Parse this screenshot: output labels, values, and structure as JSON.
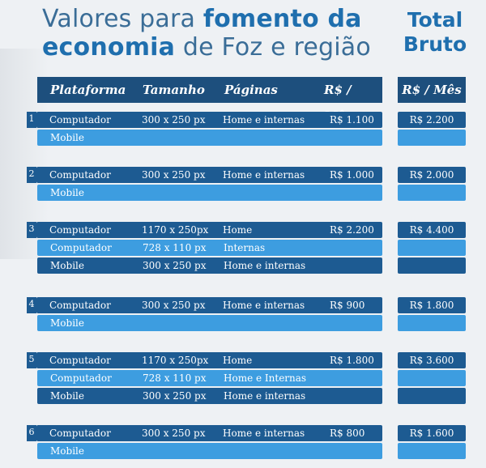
{
  "heading": {
    "line1_normal": "Valores para ",
    "line1_bold": "fomento da",
    "line2_bold": "economia",
    "line2_normal": " de Foz e região"
  },
  "total": {
    "line1": "Total",
    "line2": "Bruto"
  },
  "header": {
    "plataforma": "Plataforma",
    "tamanho": "Tamanho",
    "paginas": "Páginas",
    "valor": "R$ / Mês",
    "total": "R$ / Mês"
  },
  "groups": [
    {
      "num": "1",
      "total": "R$ 2.200",
      "rows": [
        {
          "plataforma": "Computador",
          "tamanho": "300 x 250 px",
          "paginas": "Home e internas",
          "valor": "R$ 1.100"
        },
        {
          "plataforma": "Mobile",
          "tamanho": "",
          "paginas": "",
          "valor": ""
        }
      ]
    },
    {
      "num": "2",
      "total": "R$ 2.000",
      "rows": [
        {
          "plataforma": "Computador",
          "tamanho": "300 x 250 px",
          "paginas": "Home e internas",
          "valor": "R$ 1.000"
        },
        {
          "plataforma": "Mobile",
          "tamanho": "",
          "paginas": "",
          "valor": ""
        }
      ]
    },
    {
      "num": "3",
      "total": "R$ 4.400",
      "rows": [
        {
          "plataforma": "Computador",
          "tamanho": "1170 x 250px",
          "paginas": "Home",
          "valor": "R$ 2.200"
        },
        {
          "plataforma": "Computador",
          "tamanho": "728 x 110 px",
          "paginas": "Internas",
          "valor": ""
        },
        {
          "plataforma": "Mobile",
          "tamanho": "300 x 250 px",
          "paginas": "Home e internas",
          "valor": ""
        }
      ]
    },
    {
      "num": "4",
      "total": "R$ 1.800",
      "rows": [
        {
          "plataforma": "Computador",
          "tamanho": "300 x 250 px",
          "paginas": "Home e internas",
          "valor": "R$ 900"
        },
        {
          "plataforma": "Mobile",
          "tamanho": "",
          "paginas": "",
          "valor": ""
        }
      ]
    },
    {
      "num": "5",
      "total": "R$ 3.600",
      "rows": [
        {
          "plataforma": "Computador",
          "tamanho": "1170 x 250px",
          "paginas": "Home",
          "valor": "R$ 1.800"
        },
        {
          "plataforma": "Computador",
          "tamanho": "728 x 110 px",
          "paginas": "Home e Internas",
          "valor": ""
        },
        {
          "plataforma": "Mobile",
          "tamanho": "300 x 250 px",
          "paginas": "Home e internas",
          "valor": ""
        }
      ]
    },
    {
      "num": "6",
      "total": "R$ 1.600",
      "rows": [
        {
          "plataforma": "Computador",
          "tamanho": "300 x 250 px",
          "paginas": "Home e internas",
          "valor": "R$ 800"
        },
        {
          "plataforma": "Mobile",
          "tamanho": "",
          "paginas": "",
          "valor": ""
        }
      ]
    }
  ],
  "colors": {
    "dark_row": "#1d5b92",
    "light_row": "#3d9de0",
    "header": "#1d4f7d",
    "title": "#1f6fae"
  }
}
